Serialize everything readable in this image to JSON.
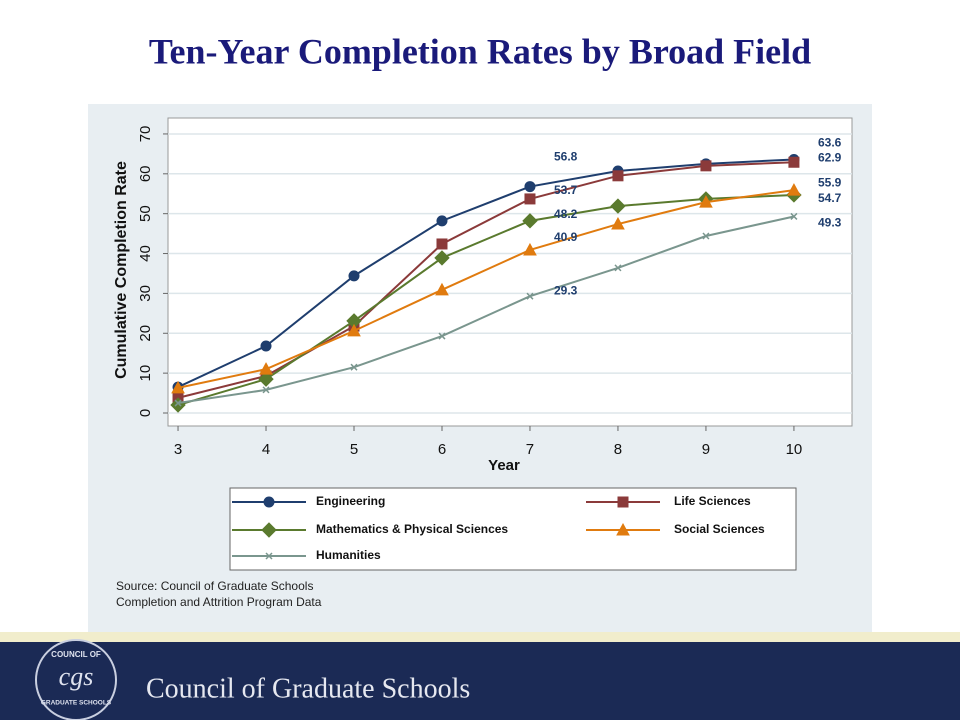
{
  "chart_data": {
    "type": "line",
    "title": "Ten-Year Completion Rates by Broad Field",
    "x_label": "Year",
    "y_label": "Cumulative Completion Rate",
    "x": [
      3,
      4,
      5,
      6,
      7,
      8,
      9,
      10
    ],
    "xlim": [
      2.886,
      10.66
    ],
    "xticks": [
      3,
      4,
      5,
      6,
      7,
      8,
      9,
      10
    ],
    "ylim": [
      -3.26,
      74
    ],
    "yticks": [
      0,
      10,
      20,
      30,
      40,
      50,
      60,
      70
    ],
    "grid": true,
    "series": [
      {
        "name": "Engineering",
        "color": "#1f3e6e",
        "marker": "circle",
        "values": [
          6.5,
          16.8,
          34.4,
          48.2,
          56.8,
          60.7,
          62.5,
          63.6
        ]
      },
      {
        "name": "Life Sciences",
        "color": "#8b3a3a",
        "marker": "square",
        "values": [
          3.8,
          9.3,
          21.8,
          42.4,
          53.7,
          59.5,
          62.0,
          62.9
        ]
      },
      {
        "name": "Mathematics & Physical Sciences",
        "color": "#5a7a2e",
        "marker": "diamond",
        "values": [
          2.0,
          8.5,
          23.1,
          38.9,
          48.2,
          51.9,
          53.7,
          54.7
        ]
      },
      {
        "name": "Social Sciences",
        "color": "#e07b0f",
        "marker": "triangle",
        "values": [
          6.3,
          11.0,
          20.6,
          30.9,
          40.9,
          47.4,
          52.9,
          55.9
        ]
      },
      {
        "name": "Humanities",
        "color": "#7a968e",
        "marker": "x",
        "values": [
          2.5,
          5.8,
          11.5,
          19.3,
          29.3,
          36.4,
          44.4,
          49.3
        ]
      }
    ]
  },
  "source": [
    "Source: Council of Graduate Schools",
    "Completion and Attrition Program Data"
  ],
  "footer": {
    "logo_top": "COUNCIL OF",
    "logo_mark": "cgs",
    "logo_bottom": "GRADUATE SCHOOLS",
    "name": "Council of Graduate Schools"
  }
}
